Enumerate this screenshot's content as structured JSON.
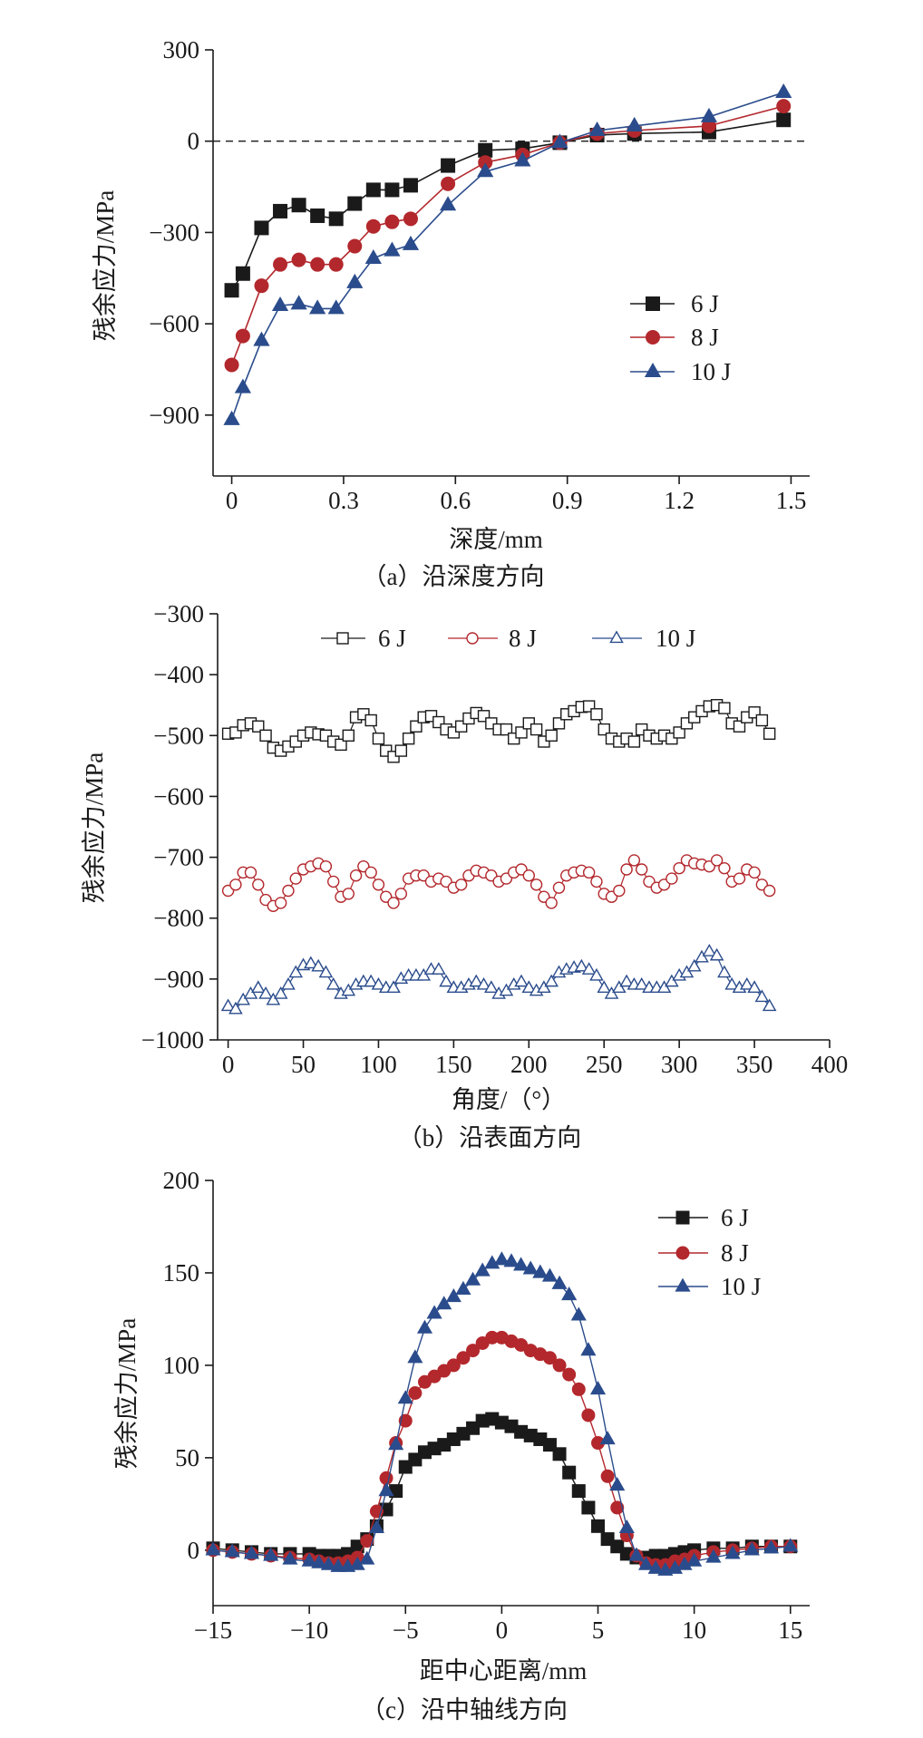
{
  "chart_data": [
    {
      "type": "line",
      "caption": "（a）沿深度方向",
      "xlabel": "深度/mm",
      "ylabel": "残余应力/MPa",
      "xlim": [
        -0.05,
        1.55
      ],
      "ylim": [
        -1100,
        300
      ],
      "grid": false,
      "x_ticks": {
        "values": [
          0,
          0.3,
          0.6,
          0.9,
          1.2,
          1.5
        ],
        "labels": [
          "0",
          "0.3",
          "0.6",
          "0.9",
          "1.2",
          "1.5"
        ]
      },
      "y_ticks": {
        "values": [
          300,
          0,
          -300,
          -600,
          -900
        ],
        "labels": [
          "300",
          "0",
          "−300",
          "−600",
          "−900"
        ]
      },
      "reference_line": {
        "y": 0,
        "style": "dashed"
      },
      "legend": {
        "placement": "center-right",
        "orientation": "vertical"
      },
      "x": [
        0,
        0.03,
        0.08,
        0.13,
        0.18,
        0.23,
        0.28,
        0.33,
        0.38,
        0.43,
        0.48,
        0.58,
        0.68,
        0.78,
        0.88,
        0.98,
        1.08,
        1.28,
        1.48
      ],
      "series": [
        {
          "name": "6 J",
          "marker": "square",
          "filled": true,
          "color": "#1a1a1a",
          "y": [
            -490,
            -435,
            -285,
            -230,
            -210,
            -245,
            -255,
            -205,
            -160,
            -160,
            -145,
            -80,
            -30,
            -25,
            -5,
            20,
            25,
            30,
            70
          ]
        },
        {
          "name": "8 J",
          "marker": "circle",
          "filled": true,
          "color": "#b3282d",
          "y": [
            -735,
            -640,
            -475,
            -405,
            -390,
            -405,
            -405,
            -345,
            -280,
            -265,
            -255,
            -140,
            -70,
            -45,
            -5,
            25,
            35,
            50,
            115
          ]
        },
        {
          "name": "10 J",
          "marker": "triangle",
          "filled": true,
          "color": "#2b4c8c",
          "y": [
            -915,
            -810,
            -655,
            -540,
            -535,
            -550,
            -550,
            -465,
            -385,
            -360,
            -340,
            -210,
            -100,
            -65,
            -5,
            35,
            50,
            80,
            160
          ]
        }
      ]
    },
    {
      "type": "line",
      "caption": "（b）沿表面方向",
      "xlabel": "角度/（°）",
      "ylabel": "残余应力/MPa",
      "xlim": [
        -7,
        400
      ],
      "ylim": [
        -1000,
        -300
      ],
      "grid": false,
      "x_ticks": {
        "values": [
          0,
          50,
          100,
          150,
          200,
          250,
          300,
          350,
          400
        ],
        "labels": [
          "0",
          "50",
          "100",
          "150",
          "200",
          "250",
          "300",
          "350",
          "400"
        ]
      },
      "y_ticks": {
        "values": [
          -300,
          -400,
          -500,
          -600,
          -700,
          -800,
          -900,
          -1000
        ],
        "labels": [
          "−300",
          "−400",
          "−500",
          "−600",
          "−700",
          "−800",
          "−900",
          "−1000"
        ]
      },
      "legend": {
        "placement": "top",
        "orientation": "horizontal"
      },
      "x": [
        0,
        5,
        10,
        15,
        20,
        25,
        30,
        35,
        40,
        45,
        50,
        55,
        60,
        65,
        70,
        75,
        80,
        85,
        90,
        95,
        100,
        105,
        110,
        115,
        120,
        125,
        130,
        135,
        140,
        145,
        150,
        155,
        160,
        165,
        170,
        175,
        180,
        185,
        190,
        195,
        200,
        205,
        210,
        215,
        220,
        225,
        230,
        235,
        240,
        245,
        250,
        255,
        260,
        265,
        270,
        275,
        280,
        285,
        290,
        295,
        300,
        305,
        310,
        315,
        320,
        325,
        330,
        335,
        340,
        345,
        350,
        355,
        360
      ],
      "series": [
        {
          "name": "6 J",
          "marker": "square",
          "filled": false,
          "color": "#1a1a1a",
          "y": [
            -497,
            -495,
            -483,
            -480,
            -485,
            -500,
            -520,
            -525,
            -518,
            -510,
            -500,
            -495,
            -498,
            -500,
            -510,
            -515,
            -500,
            -470,
            -465,
            -475,
            -505,
            -525,
            -535,
            -525,
            -505,
            -485,
            -470,
            -468,
            -478,
            -490,
            -495,
            -485,
            -472,
            -463,
            -468,
            -480,
            -490,
            -490,
            -505,
            -495,
            -480,
            -490,
            -510,
            -500,
            -480,
            -465,
            -460,
            -453,
            -452,
            -465,
            -490,
            -505,
            -510,
            -505,
            -510,
            -490,
            -500,
            -505,
            -500,
            -505,
            -495,
            -480,
            -470,
            -460,
            -452,
            -450,
            -455,
            -480,
            -485,
            -470,
            -462,
            -475,
            -497
          ]
        },
        {
          "name": "8 J",
          "marker": "circle",
          "filled": false,
          "color": "#b3282d",
          "y": [
            -755,
            -745,
            -725,
            -725,
            -745,
            -770,
            -780,
            -775,
            -755,
            -735,
            -720,
            -715,
            -710,
            -715,
            -740,
            -765,
            -760,
            -730,
            -715,
            -725,
            -745,
            -765,
            -775,
            -760,
            -735,
            -730,
            -730,
            -740,
            -735,
            -740,
            -750,
            -745,
            -730,
            -722,
            -725,
            -730,
            -740,
            -735,
            -725,
            -720,
            -730,
            -745,
            -765,
            -775,
            -750,
            -730,
            -725,
            -722,
            -725,
            -740,
            -760,
            -765,
            -755,
            -720,
            -705,
            -720,
            -740,
            -750,
            -745,
            -735,
            -718,
            -705,
            -710,
            -712,
            -715,
            -705,
            -718,
            -740,
            -735,
            -720,
            -725,
            -745,
            -755
          ]
        },
        {
          "name": "10 J",
          "marker": "triangle",
          "filled": false,
          "color": "#2b4c8c",
          "y": [
            -945,
            -950,
            -935,
            -925,
            -915,
            -925,
            -935,
            -925,
            -910,
            -890,
            -878,
            -875,
            -880,
            -890,
            -910,
            -925,
            -920,
            -910,
            -905,
            -905,
            -910,
            -915,
            -915,
            -900,
            -895,
            -895,
            -895,
            -885,
            -885,
            -905,
            -915,
            -915,
            -910,
            -905,
            -910,
            -915,
            -925,
            -920,
            -910,
            -905,
            -915,
            -920,
            -915,
            -905,
            -890,
            -885,
            -882,
            -880,
            -885,
            -895,
            -915,
            -925,
            -915,
            -905,
            -910,
            -910,
            -915,
            -915,
            -915,
            -905,
            -895,
            -890,
            -880,
            -865,
            -855,
            -862,
            -890,
            -910,
            -915,
            -910,
            -915,
            -930,
            -945
          ]
        }
      ]
    },
    {
      "type": "line",
      "caption": "（c）沿中轴线方向",
      "xlabel": "距中心距离/mm",
      "ylabel": "残余应力/MPa",
      "xlim": [
        -15,
        16
      ],
      "ylim": [
        -30,
        200
      ],
      "grid": false,
      "x_ticks": {
        "values": [
          -15,
          -10,
          -5,
          0,
          5,
          10,
          15
        ],
        "labels": [
          "−15",
          "−10",
          "−5",
          "0",
          "5",
          "10",
          "15"
        ]
      },
      "y_ticks": {
        "values": [
          200,
          150,
          100,
          50,
          0
        ],
        "labels": [
          "200",
          "150",
          "100",
          "50",
          "0"
        ]
      },
      "legend": {
        "placement": "top-right",
        "orientation": "vertical"
      },
      "x": [
        -15,
        -14,
        -13,
        -12,
        -11,
        -10,
        -9.5,
        -9,
        -8.5,
        -8,
        -7.5,
        -7,
        -6.5,
        -6,
        -5.5,
        -5,
        -4.5,
        -4,
        -3.5,
        -3,
        -2.5,
        -2,
        -1.5,
        -1,
        -0.5,
        0,
        0.5,
        1,
        1.5,
        2,
        2.5,
        3,
        3.5,
        4,
        4.5,
        5,
        5.5,
        6,
        6.5,
        7,
        7.5,
        8,
        8.5,
        9,
        9.5,
        10,
        11,
        12,
        13,
        14,
        15
      ],
      "series": [
        {
          "name": "6 J",
          "marker": "square",
          "filled": true,
          "color": "#1a1a1a",
          "y": [
            1,
            0,
            -1,
            -2,
            -2,
            -2,
            -3,
            -3,
            -3,
            -2,
            2,
            6,
            13,
            22,
            32,
            45,
            49,
            53,
            55,
            57,
            60,
            63,
            66,
            70,
            71,
            69,
            67,
            64,
            62,
            60,
            57,
            52,
            42,
            32,
            23,
            13,
            6,
            2,
            -2,
            -4,
            -4,
            -3,
            -3,
            -2,
            -1,
            0,
            1,
            1,
            2,
            2,
            2
          ]
        },
        {
          "name": "8 J",
          "marker": "circle",
          "filled": true,
          "color": "#b3282d",
          "y": [
            0,
            -1,
            -2,
            -3,
            -4,
            -5,
            -6,
            -7,
            -7,
            -6,
            -4,
            5,
            21,
            39,
            58,
            70,
            85,
            91,
            94,
            97,
            100,
            104,
            108,
            112,
            115,
            115,
            113,
            111,
            108,
            106,
            104,
            100,
            95,
            87,
            73,
            58,
            40,
            23,
            8,
            -3,
            -7,
            -8,
            -8,
            -6,
            -5,
            -3,
            -1,
            0,
            1,
            2,
            2
          ]
        },
        {
          "name": "10 J",
          "marker": "triangle",
          "filled": true,
          "color": "#2b4c8c",
          "y": [
            0,
            -1,
            -2,
            -3,
            -5,
            -6,
            -7,
            -8,
            -9,
            -9,
            -8,
            -5,
            12,
            32,
            57,
            82,
            104,
            120,
            128,
            133,
            137,
            141,
            146,
            151,
            155,
            157,
            156,
            154,
            152,
            150,
            148,
            144,
            138,
            127,
            108,
            87,
            60,
            35,
            12,
            -3,
            -8,
            -10,
            -11,
            -10,
            -8,
            -6,
            -4,
            -2,
            0,
            1,
            2
          ]
        }
      ]
    }
  ]
}
